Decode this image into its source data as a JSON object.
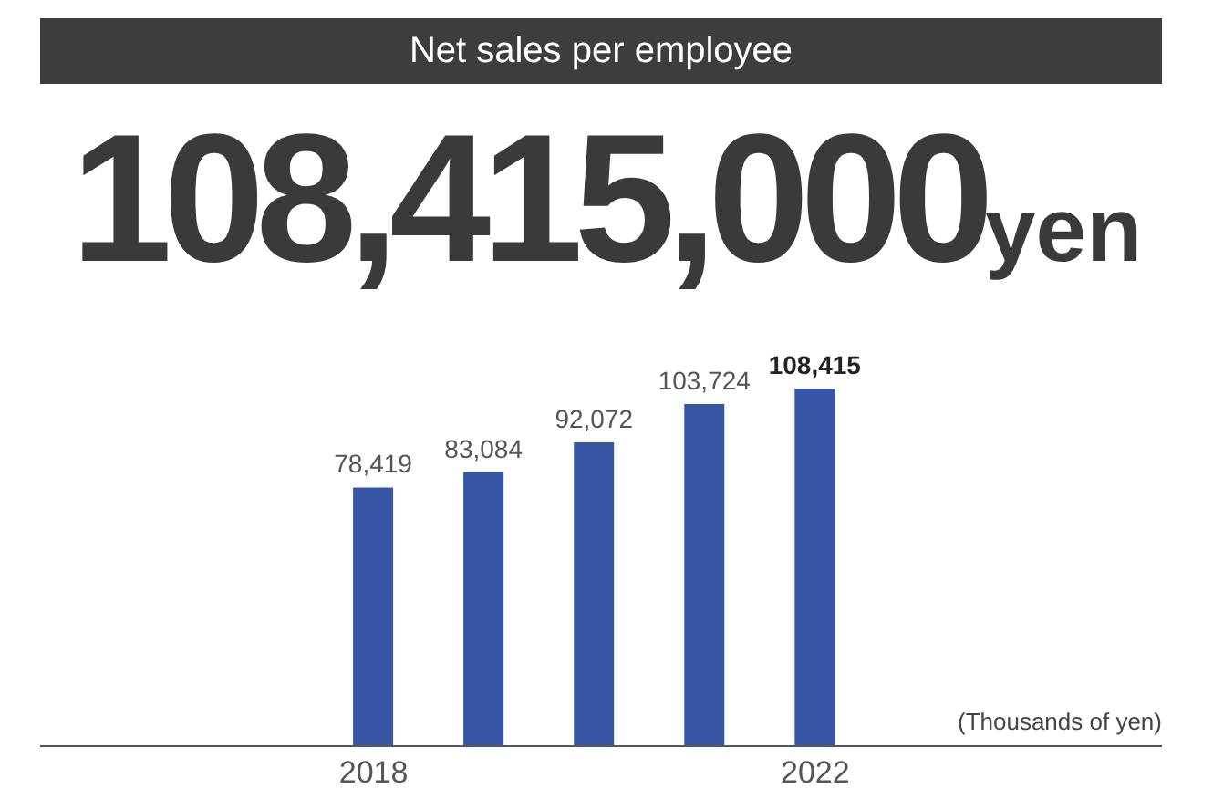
{
  "chart_data": {
    "type": "bar",
    "title": "Net sales per employee",
    "subtitle": "108,415,000yen",
    "categories": [
      "2018",
      null,
      null,
      null,
      "2022"
    ],
    "values": [
      78419,
      83084,
      92072,
      103724,
      108415
    ],
    "color": "#3757a6",
    "value_labels": [
      "78,419",
      "83,084",
      "92,072",
      "103,724",
      "108,415"
    ],
    "annotations": [
      "(Thousands of yen)"
    ]
  }
}
